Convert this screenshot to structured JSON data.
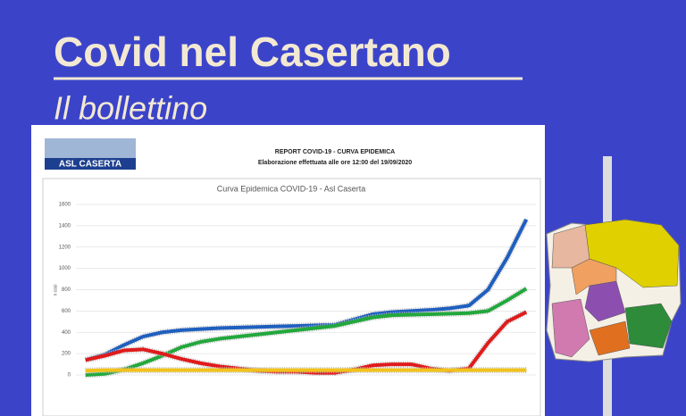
{
  "header": {
    "title": "Covid nel Casertano",
    "subtitle": "Il bollettino"
  },
  "report": {
    "logo": "ASL CASERTA",
    "heading": "REPORT COVID-19 - CURVA EPIDEMICA",
    "note": "Elaborazione effettuata alle ore 12:00 del 19/09/2020"
  },
  "chart_data": {
    "type": "line",
    "title": "Curva Epidemica COVID-19 - Asl Caserta",
    "y_label": "n casi",
    "categories": [
      null,
      null,
      null,
      null,
      null,
      null,
      null,
      null,
      null,
      null,
      null,
      null,
      null,
      null,
      null,
      null,
      null,
      null,
      null,
      null,
      null,
      null,
      null,
      null
    ],
    "series": [
      {
        "color": "#1f5fbf",
        "values": [
          140,
          190,
          280,
          360,
          400,
          420,
          430,
          440,
          445,
          450,
          455,
          460,
          465,
          470,
          520,
          570,
          590,
          600,
          610,
          625,
          650,
          800,
          1100,
          1460
        ]
      },
      {
        "color": "#22a83c",
        "values": [
          0,
          10,
          50,
          110,
          180,
          260,
          310,
          340,
          360,
          380,
          400,
          420,
          440,
          460,
          500,
          540,
          560,
          565,
          570,
          575,
          580,
          600,
          700,
          810
        ]
      },
      {
        "color": "#e01b1b",
        "values": [
          140,
          180,
          230,
          240,
          200,
          150,
          110,
          80,
          60,
          40,
          30,
          30,
          20,
          20,
          50,
          90,
          100,
          100,
          60,
          40,
          60,
          300,
          500,
          590
        ]
      },
      {
        "color": "#f2c21a",
        "values": [
          40,
          45,
          45,
          45,
          45,
          45,
          45,
          45,
          45,
          45,
          45,
          45,
          45,
          45,
          45,
          45,
          45,
          45,
          45,
          45,
          45,
          45,
          45,
          45
        ]
      }
    ],
    "ylim": [
      0,
      1600
    ],
    "yticks": [
      0,
      200,
      400,
      600,
      800,
      1000,
      1200,
      1400,
      1600
    ],
    "grid": true
  }
}
